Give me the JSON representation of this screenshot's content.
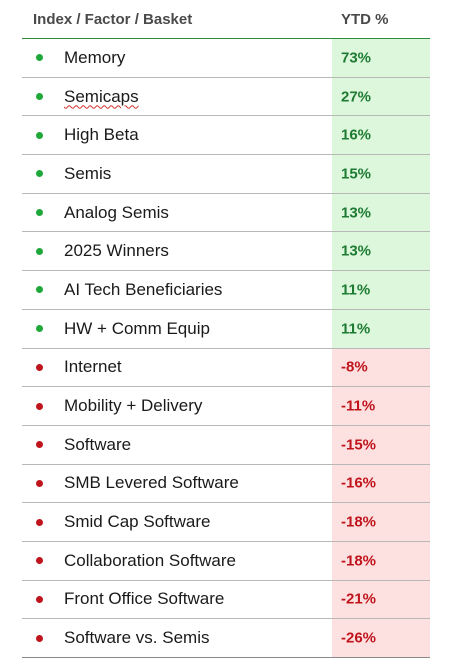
{
  "header": {
    "col_name": "Index / Factor / Basket",
    "col_value": "YTD %"
  },
  "colors": {
    "positive_dot": "#1fa83a",
    "positive_bg": "#dcf7dc",
    "positive_text": "#1e7b32",
    "negative_dot": "#c0141c",
    "negative_bg": "#fde1e1",
    "negative_text": "#c0141c"
  },
  "rows": [
    {
      "name": "Memory",
      "ytd": "73%",
      "sign": "positive"
    },
    {
      "name": "Semicaps",
      "ytd": "27%",
      "sign": "positive"
    },
    {
      "name": "High Beta",
      "ytd": "16%",
      "sign": "positive"
    },
    {
      "name": "Semis",
      "ytd": "15%",
      "sign": "positive"
    },
    {
      "name": "Analog Semis",
      "ytd": "13%",
      "sign": "positive"
    },
    {
      "name": "2025 Winners",
      "ytd": "13%",
      "sign": "positive"
    },
    {
      "name": "AI Tech Beneficiaries",
      "ytd": "11%",
      "sign": "positive"
    },
    {
      "name": "HW + Comm Equip",
      "ytd": "11%",
      "sign": "positive"
    },
    {
      "name": "Internet",
      "ytd": "-8%",
      "sign": "negative"
    },
    {
      "name": "Mobility + Delivery",
      "ytd": "-11%",
      "sign": "negative"
    },
    {
      "name": "Software",
      "ytd": "-15%",
      "sign": "negative"
    },
    {
      "name": "SMB Levered Software",
      "ytd": "-16%",
      "sign": "negative"
    },
    {
      "name": "Smid Cap Software",
      "ytd": "-18%",
      "sign": "negative"
    },
    {
      "name": "Collaboration Software",
      "ytd": "-18%",
      "sign": "negative"
    },
    {
      "name": "Front Office Software",
      "ytd": "-21%",
      "sign": "negative"
    },
    {
      "name": "Software vs. Semis",
      "ytd": "-26%",
      "sign": "negative"
    }
  ]
}
